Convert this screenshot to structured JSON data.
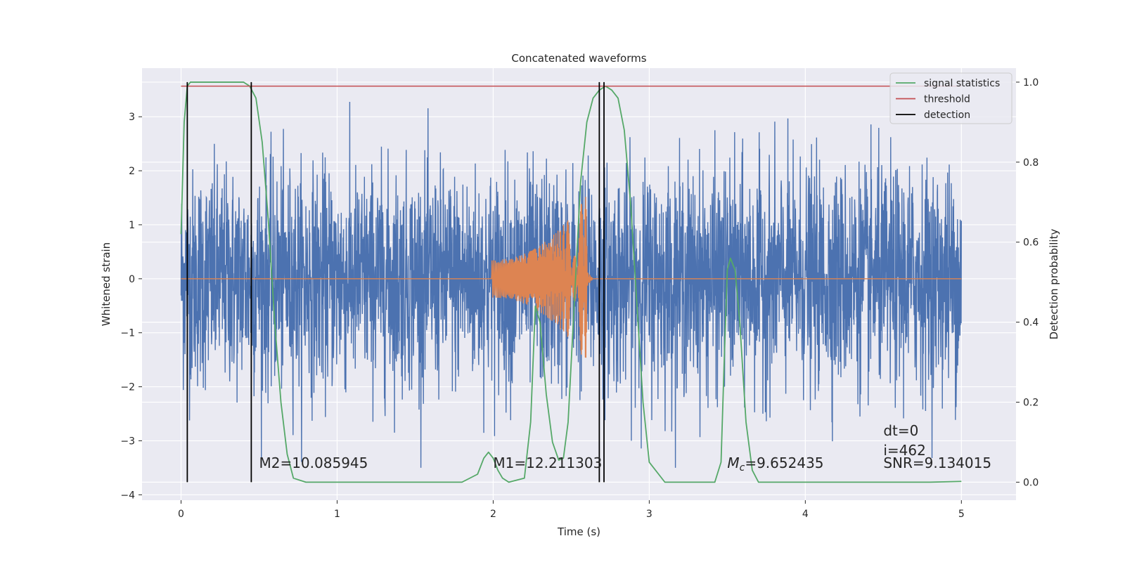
{
  "chart_data": {
    "type": "line",
    "title": "Concatenated waveforms",
    "xlabel": "Time (s)",
    "ylabel_left": "Whitened strain",
    "ylabel_right": "Detection probability",
    "xlim": [
      -0.25,
      5.35
    ],
    "ylim_left": [
      -4.1,
      3.9
    ],
    "ylim_right": [
      -0.045,
      1.035
    ],
    "x_ticks": [
      0,
      1,
      2,
      3,
      4,
      5
    ],
    "x_tick_labels": [
      "0",
      "1",
      "2",
      "3",
      "4",
      "5"
    ],
    "y_left_ticks": [
      3,
      2,
      1,
      0,
      -1,
      -2,
      -3,
      -4
    ],
    "y_left_tick_labels": [
      "3",
      "2",
      "1",
      "0",
      "−1",
      "−2",
      "−3",
      "−4"
    ],
    "y_right_ticks": [
      1.0,
      0.8,
      0.6,
      0.4,
      0.2,
      0.0
    ],
    "y_right_tick_labels": [
      "1.0",
      "0.8",
      "0.6",
      "0.4",
      "0.2",
      "0.0"
    ],
    "grid": true,
    "legend_position": "top-right",
    "colors": {
      "plot_bg": "#EAEAF2",
      "strain": "#4C72B0",
      "template": "#DD8452",
      "signal_statistics": "#55A868",
      "threshold": "#C44E52",
      "detection": "#000000"
    },
    "series": [
      {
        "role": "strain",
        "axis": "left",
        "note_range": "noisy strain spanning roughly -3.5 to 3.6 over t=0..5 s"
      },
      {
        "role": "template",
        "axis": "left",
        "chirp_start": 1.99,
        "chirp_end": 2.6,
        "amplitude_start": 0.35,
        "amplitude_end": 1.55
      },
      {
        "name": "signal statistics",
        "axis": "right",
        "x": [
          0.0,
          0.02,
          0.04,
          0.06,
          0.1,
          0.2,
          0.3,
          0.4,
          0.44,
          0.48,
          0.52,
          0.56,
          0.6,
          0.64,
          0.68,
          0.72,
          0.8,
          1.0,
          1.5,
          1.8,
          1.9,
          1.94,
          1.97,
          2.0,
          2.03,
          2.06,
          2.1,
          2.2,
          2.24,
          2.27,
          2.3,
          2.34,
          2.38,
          2.42,
          2.45,
          2.48,
          2.52,
          2.56,
          2.6,
          2.64,
          2.68,
          2.72,
          2.76,
          2.8,
          2.84,
          2.88,
          2.92,
          2.96,
          3.0,
          3.1,
          3.3,
          3.42,
          3.46,
          3.48,
          3.5,
          3.52,
          3.55,
          3.58,
          3.62,
          3.66,
          3.7,
          3.8,
          4.0,
          4.5,
          4.8,
          5.0
        ],
        "values": [
          0.62,
          0.9,
          0.99,
          1.0,
          1.0,
          1.0,
          1.0,
          1.0,
          0.99,
          0.96,
          0.85,
          0.65,
          0.4,
          0.2,
          0.07,
          0.01,
          0.0,
          0.0,
          0.0,
          0.0,
          0.02,
          0.06,
          0.075,
          0.06,
          0.03,
          0.01,
          0.0,
          0.01,
          0.15,
          0.44,
          0.4,
          0.22,
          0.1,
          0.055,
          0.06,
          0.15,
          0.45,
          0.75,
          0.9,
          0.96,
          0.98,
          0.99,
          0.98,
          0.96,
          0.88,
          0.7,
          0.45,
          0.2,
          0.05,
          0.0,
          0.0,
          0.0,
          0.05,
          0.3,
          0.53,
          0.56,
          0.53,
          0.4,
          0.15,
          0.03,
          0.0,
          0.0,
          0.0,
          0.0,
          0.0,
          0.002
        ]
      },
      {
        "name": "threshold",
        "axis": "right",
        "x": [
          0,
          5
        ],
        "values": [
          0.99,
          0.99
        ]
      },
      {
        "name": "detection",
        "axis": "right",
        "x": [
          0.04,
          0.45,
          2.68,
          2.71
        ],
        "ymin": 0.0,
        "ymax": 1.0
      }
    ],
    "legend": [
      "signal statistics",
      "threshold",
      "detection"
    ],
    "annotations": [
      {
        "text": "M2=10.085945",
        "x": 0.5,
        "y": -3.5,
        "axis": "left"
      },
      {
        "text": "M1=12.211303",
        "x": 2.0,
        "y": -3.5,
        "axis": "left"
      },
      {
        "text_italic": "M",
        "text_sub": "c",
        "text_rest": "=9.652435",
        "x": 3.5,
        "y": -3.5,
        "axis": "left"
      },
      {
        "text": "dt=0",
        "x": 4.5,
        "y": -2.9,
        "axis": "left"
      },
      {
        "text": "i=462",
        "x": 4.5,
        "y": -3.27,
        "axis": "left"
      },
      {
        "text": "SNR=9.134015",
        "x": 4.5,
        "y": -3.5,
        "axis": "left"
      }
    ]
  }
}
